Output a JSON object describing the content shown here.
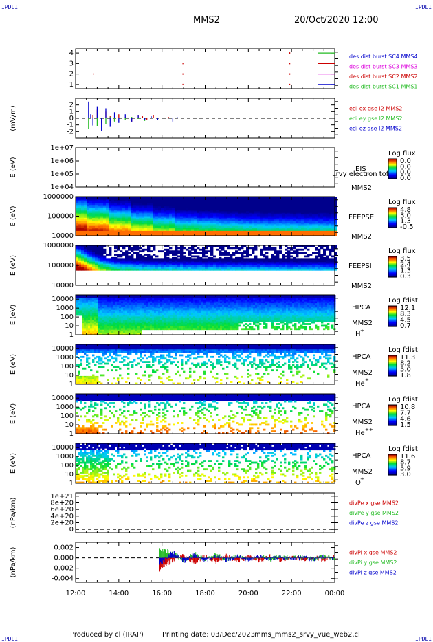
{
  "corner_label": "IPDLI",
  "header": {
    "spacecraft": "MMS2",
    "datetime": "20/Oct/2020 12:00"
  },
  "footer": {
    "produced_by": "Produced by cl (IRAP)",
    "printing_date": "Printing date: 03/Dec/2023",
    "script_name": "mms_mms2_srvy_vue_web2.cl"
  },
  "chart_data": [
    {
      "type": "line",
      "panel": "burst",
      "x_tick_labels": [
        "12:00",
        "14:00",
        "16:00",
        "18:00",
        "20:00",
        "22:00",
        "00:00"
      ],
      "xlim": [
        12,
        24
      ],
      "ylim": [
        0.6,
        4.4
      ],
      "yticks": [
        1,
        2,
        3,
        4
      ],
      "ytick_labels": [
        "1",
        "2",
        "3",
        "4"
      ],
      "ylabel": "",
      "legend": [
        {
          "label": "des dist burst SC1 MMS1",
          "color": "#22bb22"
        },
        {
          "label": "des dist burst SC2 MMS2",
          "color": "#cc0000"
        },
        {
          "label": "des dist burst SC3 MMS3",
          "color": "#dd00dd"
        },
        {
          "label": "des dist burst SC4 MMS4",
          "color": "#0000cc"
        }
      ],
      "legend_label_colors": [
        "#0000cc",
        "#dd00dd",
        "#cc0000",
        "#22bb22"
      ],
      "events": [
        {
          "x": 12.8,
          "level": 2,
          "color": "#cc0000"
        },
        {
          "x": 16.95,
          "level": 3,
          "color": "#cc0000"
        },
        {
          "x": 16.95,
          "level": 2,
          "color": "#cc0000"
        },
        {
          "x": 16.95,
          "level": 1,
          "color": "#cc0000"
        },
        {
          "x": 21.9,
          "level": 4,
          "color": "#cc0000"
        },
        {
          "x": 21.9,
          "level": 3,
          "color": "#cc0000"
        },
        {
          "x": 21.9,
          "level": 2,
          "color": "#cc0000"
        },
        {
          "x": 21.9,
          "level": 1,
          "color": "#cc0000"
        }
      ]
    },
    {
      "type": "line",
      "panel": "edi",
      "ylabel": "(mV/m)",
      "ylim": [
        -3,
        3
      ],
      "yticks": [
        -2,
        -1,
        0,
        1,
        2
      ],
      "ytick_labels": [
        "-2",
        "-1",
        "0",
        "1",
        "2"
      ],
      "reference_line": 0,
      "legend": [
        {
          "label": "edi ex gse l2 MMS2",
          "color": "#cc0000"
        },
        {
          "label": "edi ey gse l2 MMS2",
          "color": "#22bb22"
        },
        {
          "label": "edi ez gse l2 MMS2",
          "color": "#0000cc"
        }
      ],
      "series": [
        {
          "name": "edi ex gse l2 MMS2",
          "color": "#cc0000",
          "x": [
            12.8,
            13.0,
            13.2,
            13.4,
            13.6,
            13.8,
            14.0,
            14.3,
            14.6,
            14.9,
            15.1,
            15.3,
            15.6,
            16.0,
            16.3
          ],
          "values": [
            0.5,
            1.3,
            -0.8,
            1.0,
            0.3,
            -0.4,
            0.6,
            0.2,
            -0.5,
            0.4,
            0.3,
            -0.2,
            0.5,
            0.1,
            0.2
          ]
        },
        {
          "name": "edi ey gse l2 MMS2",
          "color": "#22bb22",
          "x": [
            12.6,
            12.8,
            13.0,
            13.2,
            13.4,
            13.6,
            13.8,
            14.0,
            14.3,
            14.6,
            14.9,
            15.2,
            15.5,
            15.8,
            16.2
          ],
          "values": [
            -1.6,
            -0.8,
            -1.2,
            -0.3,
            -0.9,
            0.2,
            -0.5,
            0.1,
            -0.3,
            0.2,
            -0.1,
            -0.4,
            0.1,
            -0.2,
            0.0
          ]
        },
        {
          "name": "edi ez gse l2 MMS2",
          "color": "#0000cc",
          "x": [
            12.6,
            12.7,
            12.8,
            13.0,
            13.2,
            13.4,
            13.6,
            13.8,
            14.0,
            14.3,
            14.6,
            14.9,
            15.2,
            15.5,
            15.8,
            16.2,
            16.5,
            16.7
          ],
          "values": [
            2.5,
            0.6,
            -1.1,
            1.8,
            -1.9,
            1.5,
            -1.3,
            0.9,
            -0.7,
            0.6,
            -0.5,
            0.4,
            -0.2,
            0.3,
            -0.3,
            0.1,
            -0.5,
            0.2
          ]
        }
      ]
    },
    {
      "type": "heatmap",
      "panel": "EIS",
      "ylabel": "E (eV)",
      "yscale": "log",
      "ylim": [
        10000,
        10000000
      ],
      "ytick_labels": [
        "1e+04",
        "1e+05",
        "1e+06",
        "1e+07"
      ],
      "instrument": "EIS",
      "overlay_text": "Lrvy electron tof",
      "spacecraft": "MMS2",
      "colorbar_title": "Log flux",
      "colorbar_ticks": [
        "0.0",
        "0.0",
        "0.0",
        "0.0"
      ],
      "z_range": [
        0,
        0
      ],
      "data_present": false
    },
    {
      "type": "heatmap",
      "panel": "FEEPSE",
      "ylabel": "E (eV)",
      "yscale": "log",
      "ylim": [
        10000,
        1000000
      ],
      "ytick_labels": [
        "10000",
        "100000",
        "1000000"
      ],
      "instrument": "FEEPSE",
      "spacecraft": "MMS2",
      "colorbar_title": "Log flux",
      "colorbar_ticks": [
        "4.8",
        "3.0",
        "1.3",
        "-0.5"
      ],
      "z_range": [
        -0.5,
        4.8
      ],
      "x": [
        12,
        13,
        14,
        15,
        16,
        17,
        18,
        19,
        20,
        21,
        22,
        23,
        24
      ],
      "high_flux_energy_edge": [
        600000,
        420000,
        260000,
        170000,
        120000,
        90000,
        80000,
        72000,
        66000,
        62000,
        60000,
        58000,
        56000
      ],
      "low_band_level": 3.6
    },
    {
      "type": "heatmap",
      "panel": "FEEPSI",
      "ylabel": "E (eV)",
      "yscale": "log",
      "ylim": [
        10000,
        1000000
      ],
      "ytick_labels": [
        "10000",
        "100000",
        "1000000"
      ],
      "instrument": "FEEPSI",
      "spacecraft": "MMS2",
      "colorbar_title": "Log flux",
      "colorbar_ticks": [
        "3.5",
        "2.4",
        "1.3",
        "0.3"
      ],
      "z_range": [
        0.3,
        3.5
      ],
      "x": [
        12,
        12.5,
        13,
        13.5,
        14,
        15,
        16,
        18,
        20,
        22,
        24
      ],
      "high_flux_energy_edge": [
        500000,
        260000,
        150000,
        110000,
        90000,
        80000,
        76000,
        72000,
        70000,
        68000,
        66000
      ],
      "data_floor_energy": 55000
    },
    {
      "type": "heatmap",
      "panel": "HPCA H+",
      "ylabel": "E (eV)",
      "yscale": "log",
      "ylim": [
        1,
        30000
      ],
      "ytick_labels": [
        "1",
        "10",
        "100",
        "1000",
        "10000"
      ],
      "instrument": "HPCA",
      "spacecraft": "MMS2",
      "species_base": "H",
      "species_sup": "+",
      "colorbar_title": "Log fdist",
      "colorbar_ticks": [
        "12.1",
        "8.3",
        "4.5",
        "0.7"
      ],
      "z_range": [
        0.7,
        12.1
      ]
    },
    {
      "type": "heatmap",
      "panel": "HPCA He+",
      "ylabel": "E (eV)",
      "yscale": "log",
      "ylim": [
        1,
        30000
      ],
      "ytick_labels": [
        "1",
        "10",
        "100",
        "1000",
        "10000"
      ],
      "instrument": "HPCA",
      "spacecraft": "MMS2",
      "species_base": "He",
      "species_sup": "+",
      "colorbar_title": "Log fdist",
      "colorbar_ticks": [
        "11.3",
        "8.2",
        "5.0",
        "1.8"
      ],
      "z_range": [
        1.8,
        11.3
      ]
    },
    {
      "type": "heatmap",
      "panel": "HPCA He++",
      "ylabel": "E (eV)",
      "yscale": "log",
      "ylim": [
        1,
        30000
      ],
      "ytick_labels": [
        "1",
        "10",
        "100",
        "1000",
        "10000"
      ],
      "instrument": "HPCA",
      "spacecraft": "MMS2",
      "species_base": "He",
      "species_sup": "++",
      "colorbar_title": "Log fdist",
      "colorbar_ticks": [
        "10.8",
        "7.7",
        "4.6",
        "1.5"
      ],
      "z_range": [
        1.5,
        10.8
      ]
    },
    {
      "type": "heatmap",
      "panel": "HPCA O+",
      "ylabel": "E (eV)",
      "yscale": "log",
      "ylim": [
        1,
        30000
      ],
      "ytick_labels": [
        "1",
        "10",
        "100",
        "1000",
        "10000"
      ],
      "instrument": "HPCA",
      "spacecraft": "MMS2",
      "species_base": "O",
      "species_sup": "+",
      "colorbar_title": "Log fdist",
      "colorbar_ticks": [
        "11.6",
        "8.7",
        "5.9",
        "3.0"
      ],
      "z_range": [
        3.0,
        11.6
      ]
    },
    {
      "type": "line",
      "panel": "divPe",
      "ylabel": "(nPa/km)",
      "ylim": [
        -1e+20,
        1.1e+21
      ],
      "yticks": [
        0,
        2e+20,
        4e+20,
        6e+20,
        8e+20,
        1e+21
      ],
      "ytick_labels": [
        "0",
        "2e+20",
        "4e+20",
        "6e+20",
        "8e+20",
        "1e+21"
      ],
      "reference_line": 0,
      "legend": [
        {
          "label": "divPe x gse MMS2",
          "color": "#cc0000"
        },
        {
          "label": "divPe y gse MMS2",
          "color": "#22bb22"
        },
        {
          "label": "divPe z gse MMS2",
          "color": "#0000cc"
        }
      ]
    },
    {
      "type": "line",
      "panel": "divPi",
      "ylabel": "(nPa/km)",
      "ylim": [
        -0.0047,
        0.003
      ],
      "yticks": [
        -0.004,
        -0.002,
        0,
        0.002
      ],
      "ytick_labels": [
        "-0.004",
        "-0.002",
        "0.000",
        "0.002"
      ],
      "reference_line": 0,
      "data_start_x": 15.9,
      "legend": [
        {
          "label": "divPi x gse MMS2",
          "color": "#cc0000"
        },
        {
          "label": "divPi y gse MMS2",
          "color": "#22bb22"
        },
        {
          "label": "divPi z gse MMS2",
          "color": "#0000cc"
        }
      ],
      "series": [
        {
          "name": "divPi x gse MMS2",
          "color": "#cc0000",
          "x": [
            15.9,
            16.5,
            17.0,
            17.5,
            18.0,
            18.5,
            19.0,
            19.5,
            20.0,
            20.5,
            21.0,
            21.5,
            22.0,
            22.5,
            23.0,
            23.5,
            24.0
          ],
          "values": [
            -0.0022,
            -0.0004,
            0.0006,
            -0.001,
            0.0003,
            -0.0007,
            0.0004,
            -0.0006,
            0.0002,
            -0.0005,
            0.0003,
            -0.0004,
            0.0001,
            -0.0003,
            0.0002,
            -0.0004,
            0.0003
          ]
        },
        {
          "name": "divPi y gse MMS2",
          "color": "#22bb22",
          "x": [
            15.9,
            16.5,
            17.0,
            17.5,
            18.0,
            18.5,
            19.0,
            19.5,
            20.0,
            20.5,
            21.0,
            21.5,
            22.0,
            22.5,
            23.0,
            23.5,
            24.0
          ],
          "values": [
            0.0018,
            0.0009,
            -0.0005,
            0.0008,
            -0.0003,
            0.0006,
            -0.0004,
            0.0005,
            -0.0002,
            0.0004,
            -0.0003,
            0.0003,
            -0.0001,
            0.0002,
            -0.0002,
            0.0003,
            -0.0002
          ]
        },
        {
          "name": "divPi z gse MMS2",
          "color": "#0000cc",
          "x": [
            15.9,
            16.5,
            17.0,
            17.5,
            18.0,
            18.5,
            19.0,
            19.5,
            20.0,
            20.5,
            21.0,
            21.5,
            22.0,
            22.5,
            23.0,
            23.5,
            24.0
          ],
          "values": [
            -0.0012,
            0.0012,
            -0.0007,
            0.0005,
            -0.0006,
            0.0004,
            -0.0005,
            0.0003,
            -0.0004,
            0.0003,
            -0.0003,
            0.0002,
            -0.0002,
            0.0001,
            -0.0003,
            0.0002,
            -0.0001
          ]
        }
      ]
    }
  ]
}
